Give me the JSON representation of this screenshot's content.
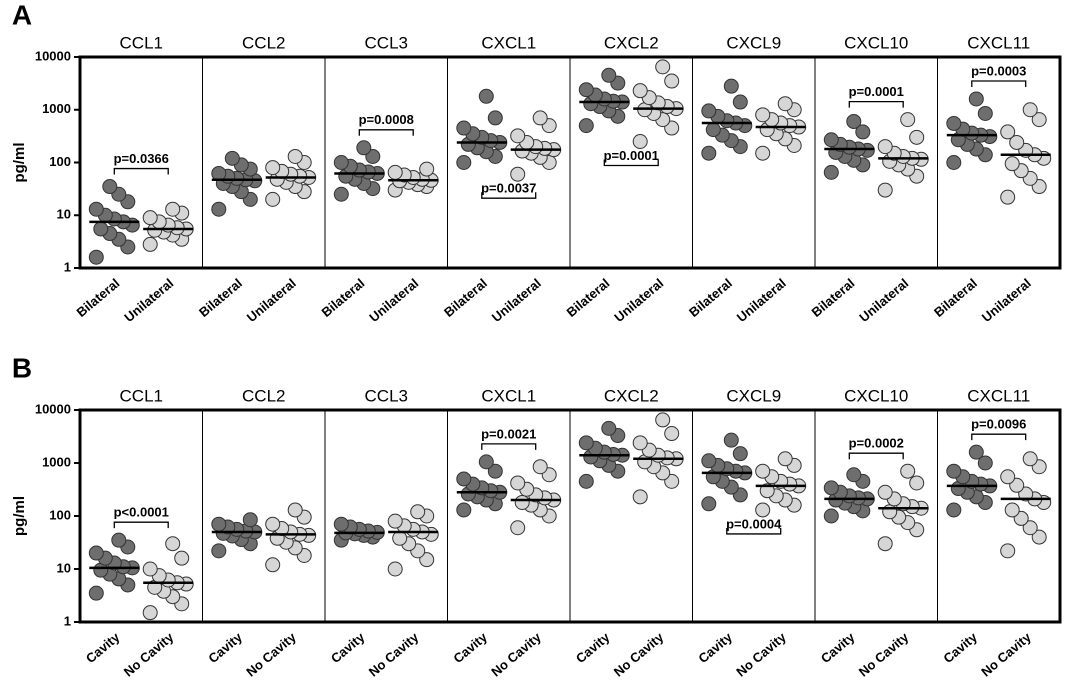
{
  "chart_data": [
    {
      "type": "dotplot",
      "panel_label": "A",
      "ylabel": "pg/ml",
      "log_scale": true,
      "ylim": [
        1,
        10000
      ],
      "yticks": [
        1,
        10,
        100,
        1000,
        10000
      ],
      "groups": [
        "Bilateral",
        "Unilateral"
      ],
      "colors": [
        "#6e6e6e",
        "#d6d6d6"
      ],
      "panels": [
        {
          "title": "CCL1",
          "series": [
            {
              "values": [
                1.6,
                2.5,
                3.5,
                4.5,
                5.5,
                6.5,
                7.5,
                8.5,
                10,
                13,
                18,
                25,
                35
              ],
              "median": 7.5
            },
            {
              "values": [
                2.8,
                3.5,
                4.2,
                4.8,
                5.2,
                5.5,
                5.8,
                6.5,
                7.5,
                9,
                11,
                13
              ],
              "median": 5.5
            }
          ],
          "p_value": {
            "label": "p=0.0366",
            "position": "above"
          }
        },
        {
          "title": "CCL2",
          "series": [
            {
              "values": [
                13,
                20,
                28,
                35,
                40,
                45,
                47,
                50,
                55,
                62,
                75,
                90,
                120
              ],
              "median": 47
            },
            {
              "values": [
                20,
                28,
                35,
                42,
                48,
                52,
                55,
                60,
                68,
                80,
                100,
                130
              ],
              "median": 52
            }
          ]
        },
        {
          "title": "CCL3",
          "series": [
            {
              "values": [
                25,
                32,
                40,
                48,
                55,
                62,
                66,
                72,
                85,
                100,
                130,
                190
              ],
              "median": 62
            },
            {
              "values": [
                30,
                35,
                38,
                42,
                45,
                46,
                48,
                52,
                58,
                65,
                75
              ],
              "median": 46
            }
          ],
          "p_value": {
            "label": "p=0.0008",
            "position": "above"
          }
        },
        {
          "title": "CXCL1",
          "series": [
            {
              "values": [
                100,
                130,
                160,
                190,
                220,
                240,
                260,
                300,
                350,
                450,
                700,
                1800
              ],
              "median": 240
            },
            {
              "values": [
                60,
                100,
                125,
                150,
                165,
                175,
                185,
                200,
                240,
                320,
                500,
                700
              ],
              "median": 175
            }
          ],
          "p_value": {
            "label": "p=0.0037",
            "position": "below"
          }
        },
        {
          "title": "CXCL2",
          "series": [
            {
              "values": [
                500,
                750,
                950,
                1150,
                1300,
                1400,
                1450,
                1600,
                1900,
                2400,
                3200,
                4500
              ],
              "median": 1400
            },
            {
              "values": [
                250,
                450,
                650,
                850,
                1000,
                1050,
                1150,
                1350,
                1700,
                2300,
                3500,
                6500
              ],
              "median": 1050
            }
          ],
          "p_value": {
            "label": "p=0.0001",
            "position": "below"
          }
        },
        {
          "title": "CXCL9",
          "series": [
            {
              "values": [
                150,
                200,
                260,
                330,
                420,
                500,
                560,
                620,
                750,
                950,
                1400,
                2800
              ],
              "median": 560
            },
            {
              "values": [
                150,
                210,
                280,
                350,
                420,
                470,
                500,
                560,
                650,
                800,
                1000,
                1300
              ],
              "median": 470
            }
          ]
        },
        {
          "title": "CXCL10",
          "series": [
            {
              "values": [
                65,
                90,
                110,
                130,
                155,
                170,
                180,
                195,
                220,
                270,
                380,
                600
              ],
              "median": 180
            },
            {
              "values": [
                30,
                55,
                75,
                90,
                105,
                115,
                120,
                130,
                150,
                200,
                300,
                650
              ],
              "median": 120
            }
          ],
          "p_value": {
            "label": "p=0.0001",
            "position": "above"
          }
        },
        {
          "title": "CXCL11",
          "series": [
            {
              "values": [
                100,
                140,
                180,
                220,
                270,
                310,
                330,
                360,
                430,
                550,
                850,
                1600
              ],
              "median": 330
            },
            {
              "values": [
                22,
                35,
                50,
                70,
                95,
                120,
                140,
                170,
                240,
                380,
                650,
                1000
              ],
              "median": 140
            }
          ],
          "p_value": {
            "label": "p=0.0003",
            "position": "above"
          }
        }
      ]
    },
    {
      "type": "dotplot",
      "panel_label": "B",
      "ylabel": "pg/ml",
      "log_scale": true,
      "ylim": [
        1,
        10000
      ],
      "yticks": [
        1,
        10,
        100,
        1000,
        10000
      ],
      "groups": [
        "Cavity",
        "No Cavity"
      ],
      "colors": [
        "#6e6e6e",
        "#d6d6d6"
      ],
      "panels": [
        {
          "title": "CCL1",
          "series": [
            {
              "values": [
                3.5,
                5,
                6.5,
                8,
                9.5,
                10.5,
                11,
                13,
                16,
                20,
                26,
                35
              ],
              "median": 10.5
            },
            {
              "values": [
                1.5,
                2.2,
                3,
                3.8,
                4.5,
                5.2,
                5.5,
                6.2,
                7.5,
                10,
                16,
                30
              ],
              "median": 5.5
            }
          ],
          "p_value": {
            "label": "p<0.0001",
            "position": "above"
          }
        },
        {
          "title": "CCL2",
          "series": [
            {
              "values": [
                22,
                30,
                36,
                42,
                47,
                50,
                52,
                56,
                62,
                70,
                85
              ],
              "median": 50
            },
            {
              "values": [
                12,
                18,
                25,
                32,
                38,
                43,
                45,
                50,
                58,
                70,
                95,
                130
              ],
              "median": 45
            }
          ]
        },
        {
          "title": "CCL3",
          "series": [
            {
              "values": [
                35,
                40,
                43,
                46,
                48,
                49,
                52,
                56,
                62,
                70
              ],
              "median": 48
            },
            {
              "values": [
                10,
                15,
                22,
                30,
                38,
                45,
                50,
                56,
                65,
                80,
                100,
                120
              ],
              "median": 50
            }
          ]
        },
        {
          "title": "CXCL1",
          "series": [
            {
              "values": [
                130,
                170,
                200,
                230,
                260,
                280,
                300,
                340,
                400,
                500,
                700,
                1050
              ],
              "median": 280
            },
            {
              "values": [
                60,
                100,
                130,
                160,
                180,
                200,
                220,
                250,
                320,
                420,
                600,
                850
              ],
              "median": 200
            }
          ],
          "p_value": {
            "label": "p=0.0021",
            "position": "above"
          }
        },
        {
          "title": "CXCL2",
          "series": [
            {
              "values": [
                450,
                700,
                900,
                1100,
                1300,
                1400,
                1450,
                1600,
                1900,
                2400,
                3300,
                4500
              ],
              "median": 1400
            },
            {
              "values": [
                230,
                450,
                650,
                850,
                1050,
                1200,
                1250,
                1400,
                1750,
                2400,
                3600,
                6500
              ],
              "median": 1200
            }
          ]
        },
        {
          "title": "CXCL9",
          "series": [
            {
              "values": [
                170,
                250,
                350,
                450,
                550,
                650,
                700,
                780,
                900,
                1100,
                1500,
                2700
              ],
              "median": 650
            },
            {
              "values": [
                130,
                160,
                200,
                240,
                300,
                370,
                400,
                450,
                550,
                700,
                900,
                1200
              ],
              "median": 370
            }
          ],
          "p_value": {
            "label": "p=0.0004",
            "position": "below"
          }
        },
        {
          "title": "CXCL10",
          "series": [
            {
              "values": [
                100,
                125,
                150,
                175,
                200,
                210,
                220,
                240,
                280,
                340,
                450,
                600
              ],
              "median": 210
            },
            {
              "values": [
                30,
                55,
                75,
                95,
                120,
                140,
                150,
                170,
                210,
                280,
                420,
                700
              ],
              "median": 140
            }
          ],
          "p_value": {
            "label": "p=0.0002",
            "position": "above"
          }
        },
        {
          "title": "CXCL11",
          "series": [
            {
              "values": [
                130,
                180,
                230,
                280,
                330,
                370,
                400,
                450,
                550,
                700,
                1000,
                1600
              ],
              "median": 370
            },
            {
              "values": [
                22,
                40,
                60,
                90,
                130,
                180,
                210,
                260,
                380,
                550,
                850,
                1200
              ],
              "median": 210
            }
          ],
          "p_value": {
            "label": "p=0.0096",
            "position": "above"
          }
        }
      ]
    }
  ]
}
